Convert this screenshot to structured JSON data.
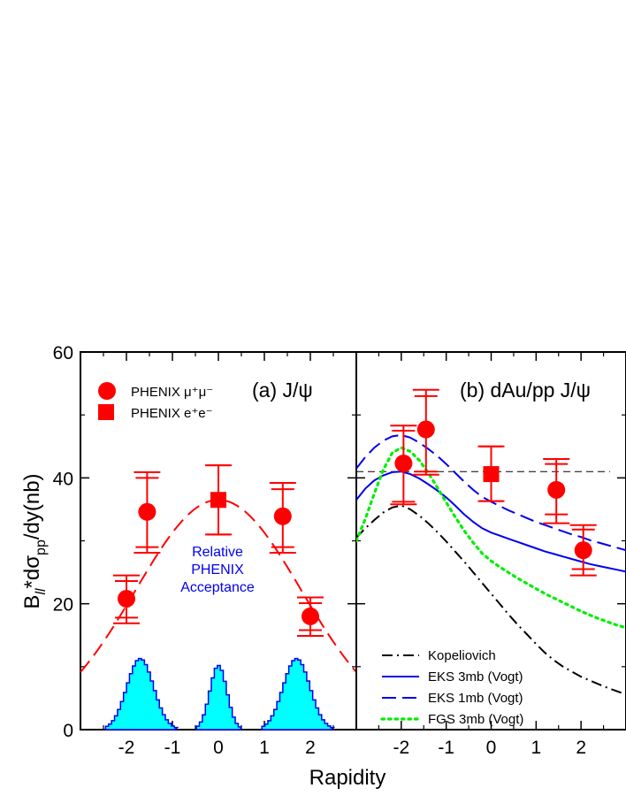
{
  "chart_data": [
    {
      "type": "scatter",
      "panel": "a",
      "title": "(a) J/ψ",
      "xlabel": "Rapidity",
      "ylabel_parts": {
        "main": "B",
        "sub1": "ll",
        "mid": "*dσ",
        "sub2": "pp",
        "end": "/dy(nb)"
      },
      "xlim": [
        -3.0,
        3.0
      ],
      "ylim": [
        0,
        60
      ],
      "x_ticks": [
        -2,
        -1,
        0,
        1,
        2
      ],
      "x_tick_labels": [
        "-2",
        "-1",
        "0",
        "1",
        "2"
      ],
      "y_ticks": [
        0,
        20,
        40,
        60
      ],
      "y_tick_labels": [
        "0",
        "20",
        "40",
        "60"
      ],
      "legend": [
        {
          "label": "PHENIX μ⁺μ⁻",
          "marker": "circle"
        },
        {
          "label": "PHENIX e⁺e⁻",
          "marker": "square"
        }
      ],
      "series": [
        {
          "name": "PHENIX mu+mu-",
          "marker": "circle",
          "points": [
            {
              "x": -2.0,
              "y": 20.8,
              "stat_lo": 17.8,
              "stat_hi": 23.6,
              "sys_lo": 16.9,
              "sys_hi": 24.5
            },
            {
              "x": -1.55,
              "y": 34.6,
              "stat_lo": 29.0,
              "stat_hi": 40.0,
              "sys_lo": 28.1,
              "sys_hi": 40.9
            },
            {
              "x": 1.4,
              "y": 33.9,
              "stat_lo": 29.0,
              "stat_hi": 38.2,
              "sys_lo": 28.1,
              "sys_hi": 39.2
            },
            {
              "x": 2.0,
              "y": 18.0,
              "stat_lo": 15.8,
              "stat_hi": 20.1,
              "sys_lo": 14.9,
              "sys_hi": 21.0
            }
          ]
        },
        {
          "name": "PHENIX e+e-",
          "marker": "square",
          "points": [
            {
              "x": 0.0,
              "y": 36.5,
              "stat_lo": 31.0,
              "stat_hi": 42.0,
              "sys_lo": 31.0,
              "sys_hi": 42.0
            }
          ]
        }
      ],
      "fit": {
        "name": "dashed fit",
        "style": "dashed",
        "amplitude": 36.5,
        "width": 2.55
      },
      "acceptance": {
        "label_lines": [
          "Relative",
          "PHENIX",
          "Acceptance"
        ],
        "peaks": [
          {
            "center": -1.7,
            "height": 11.3,
            "halfwidth": 0.52
          },
          {
            "center": 0.0,
            "height": 10.2,
            "halfwidth": 0.33
          },
          {
            "center": 1.7,
            "height": 11.3,
            "halfwidth": 0.52
          }
        ]
      }
    },
    {
      "type": "scatter",
      "panel": "b",
      "title": "(b) dAu/pp  J/ψ",
      "xlim": [
        -3.0,
        3.0
      ],
      "ylim": [
        0,
        60
      ],
      "x_ticks": [
        -2,
        -1,
        0,
        1,
        2
      ],
      "x_tick_labels": [
        "-2",
        "-1",
        "0",
        "1",
        "2"
      ],
      "reference_line": {
        "y": 41.0,
        "style": "dashed"
      },
      "series": [
        {
          "name": "PHENIX mu+mu-",
          "marker": "circle",
          "points": [
            {
              "x": -1.95,
              "y": 42.3,
              "stat_lo": 36.2,
              "stat_hi": 47.5,
              "sys_lo": 35.8,
              "sys_hi": 48.3
            },
            {
              "x": -1.45,
              "y": 47.7,
              "stat_lo": 41.0,
              "stat_hi": 53.0,
              "sys_lo": 40.5,
              "sys_hi": 54.0
            },
            {
              "x": 1.45,
              "y": 38.1,
              "stat_lo": 34.2,
              "stat_hi": 42.2,
              "sys_lo": 32.8,
              "sys_hi": 43.0
            },
            {
              "x": 2.05,
              "y": 28.5,
              "stat_lo": 25.5,
              "stat_hi": 31.8,
              "sys_lo": 24.5,
              "sys_hi": 32.5
            }
          ]
        },
        {
          "name": "PHENIX e+e-",
          "marker": "square",
          "points": [
            {
              "x": 0.0,
              "y": 40.6,
              "stat_lo": 36.3,
              "stat_hi": 45.0,
              "sys_lo": 36.3,
              "sys_hi": 45.0
            }
          ]
        }
      ],
      "curves": [
        {
          "name": "Kopeliovich",
          "label": "Kopeliovich",
          "color": "#000000",
          "style": "dashdot",
          "x": [
            -3.0,
            -2.8,
            -2.6,
            -2.4,
            -2.2,
            -2.0,
            -1.8,
            -1.6,
            -1.4,
            -1.2,
            -1.0,
            -0.8,
            -0.6,
            -0.4,
            -0.2,
            0.0,
            0.2,
            0.4,
            0.6,
            0.8,
            1.0,
            1.2,
            1.4,
            1.6,
            1.8,
            2.0,
            2.2,
            2.4,
            2.6,
            2.8,
            3.0
          ],
          "y": [
            30.5,
            32.0,
            33.3,
            34.5,
            35.3,
            35.6,
            35.0,
            34.0,
            32.8,
            31.4,
            29.9,
            28.3,
            26.7,
            25.0,
            23.3,
            21.6,
            19.9,
            18.2,
            16.6,
            15.1,
            13.6,
            12.2,
            11.0,
            10.0,
            9.2,
            8.4,
            7.8,
            7.2,
            6.6,
            6.1,
            5.6
          ]
        },
        {
          "name": "EKS 3mb (Vogt)",
          "label": "EKS 3mb (Vogt)",
          "color": "#0000ee",
          "style": "solid",
          "x": [
            -3.0,
            -2.8,
            -2.6,
            -2.4,
            -2.2,
            -2.0,
            -1.8,
            -1.6,
            -1.4,
            -1.2,
            -1.0,
            -0.8,
            -0.6,
            -0.4,
            -0.2,
            0.0,
            0.2,
            0.4,
            0.6,
            0.8,
            1.0,
            1.2,
            1.4,
            1.6,
            1.8,
            2.0,
            2.2,
            2.4,
            2.6,
            2.8,
            3.0
          ],
          "y": [
            36.5,
            38.3,
            39.6,
            40.4,
            40.9,
            41.0,
            40.6,
            39.9,
            39.0,
            38.0,
            36.9,
            35.6,
            34.2,
            33.0,
            32.0,
            31.3,
            30.8,
            30.3,
            29.8,
            29.3,
            28.8,
            28.3,
            27.9,
            27.5,
            27.1,
            26.7,
            26.3,
            26.0,
            25.7,
            25.4,
            25.1
          ]
        },
        {
          "name": "EKS 1mb (Vogt)",
          "label": "EKS 1mb (Vogt)",
          "color": "#0000ee",
          "style": "dashed",
          "x": [
            -3.0,
            -2.8,
            -2.6,
            -2.4,
            -2.2,
            -2.0,
            -1.8,
            -1.6,
            -1.4,
            -1.2,
            -1.0,
            -0.8,
            -0.6,
            -0.4,
            -0.2,
            0.0,
            0.2,
            0.4,
            0.6,
            0.8,
            1.0,
            1.2,
            1.4,
            1.6,
            1.8,
            2.0,
            2.2,
            2.4,
            2.6,
            2.8,
            3.0
          ],
          "y": [
            41.5,
            43.3,
            44.8,
            45.9,
            46.6,
            46.8,
            46.4,
            45.6,
            44.6,
            43.5,
            42.2,
            40.8,
            39.4,
            38.1,
            37.0,
            36.2,
            35.5,
            34.8,
            34.2,
            33.6,
            33.0,
            32.5,
            32.0,
            31.5,
            31.0,
            30.6,
            30.1,
            29.7,
            29.3,
            28.9,
            28.5
          ]
        },
        {
          "name": "FGS 3mb (Vogt)",
          "label": "FGS 3mb (Vogt)",
          "color": "#00ee00",
          "style": "dotted",
          "x": [
            -3.0,
            -2.8,
            -2.6,
            -2.4,
            -2.2,
            -2.0,
            -1.8,
            -1.6,
            -1.4,
            -1.2,
            -1.0,
            -0.8,
            -0.6,
            -0.4,
            -0.2,
            0.0,
            0.2,
            0.4,
            0.6,
            0.8,
            1.0,
            1.2,
            1.4,
            1.6,
            1.8,
            2.0,
            2.2,
            2.4,
            2.6,
            2.8,
            3.0
          ],
          "y": [
            30.0,
            33.5,
            37.5,
            41.3,
            44.0,
            44.8,
            44.2,
            42.8,
            40.8,
            38.5,
            36.1,
            33.8,
            31.6,
            29.7,
            28.0,
            26.8,
            25.8,
            24.9,
            24.0,
            23.2,
            22.4,
            21.6,
            20.9,
            20.2,
            19.5,
            18.8,
            18.2,
            17.6,
            17.1,
            16.6,
            16.2
          ]
        }
      ]
    }
  ]
}
